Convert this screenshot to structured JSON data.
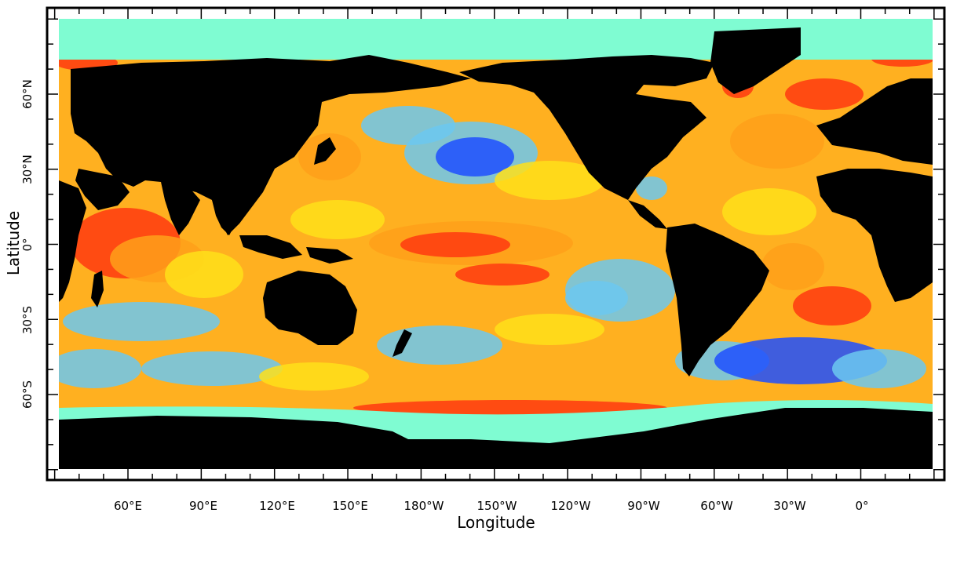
{
  "map": {
    "xlabel": "Longitude",
    "ylabel": "Latitude",
    "lon_ticks": [
      "60°E",
      "90°E",
      "120°E",
      "150°E",
      "180°W",
      "150°W",
      "120°W",
      "90°W",
      "60°W",
      "30°W",
      "0°"
    ],
    "lat_ticks": [
      "60°N",
      "30°N",
      "0°",
      "30°S",
      "60°S"
    ],
    "colors": {
      "land": "#000000",
      "ice": "#7ffcd2",
      "ocean_low": "#1f4fff",
      "ocean_cool": "#6cc8f0",
      "ocean_mid": "#ffe01a",
      "ocean_warm": "#ffa01a",
      "ocean_high": "#ff3a10"
    }
  }
}
